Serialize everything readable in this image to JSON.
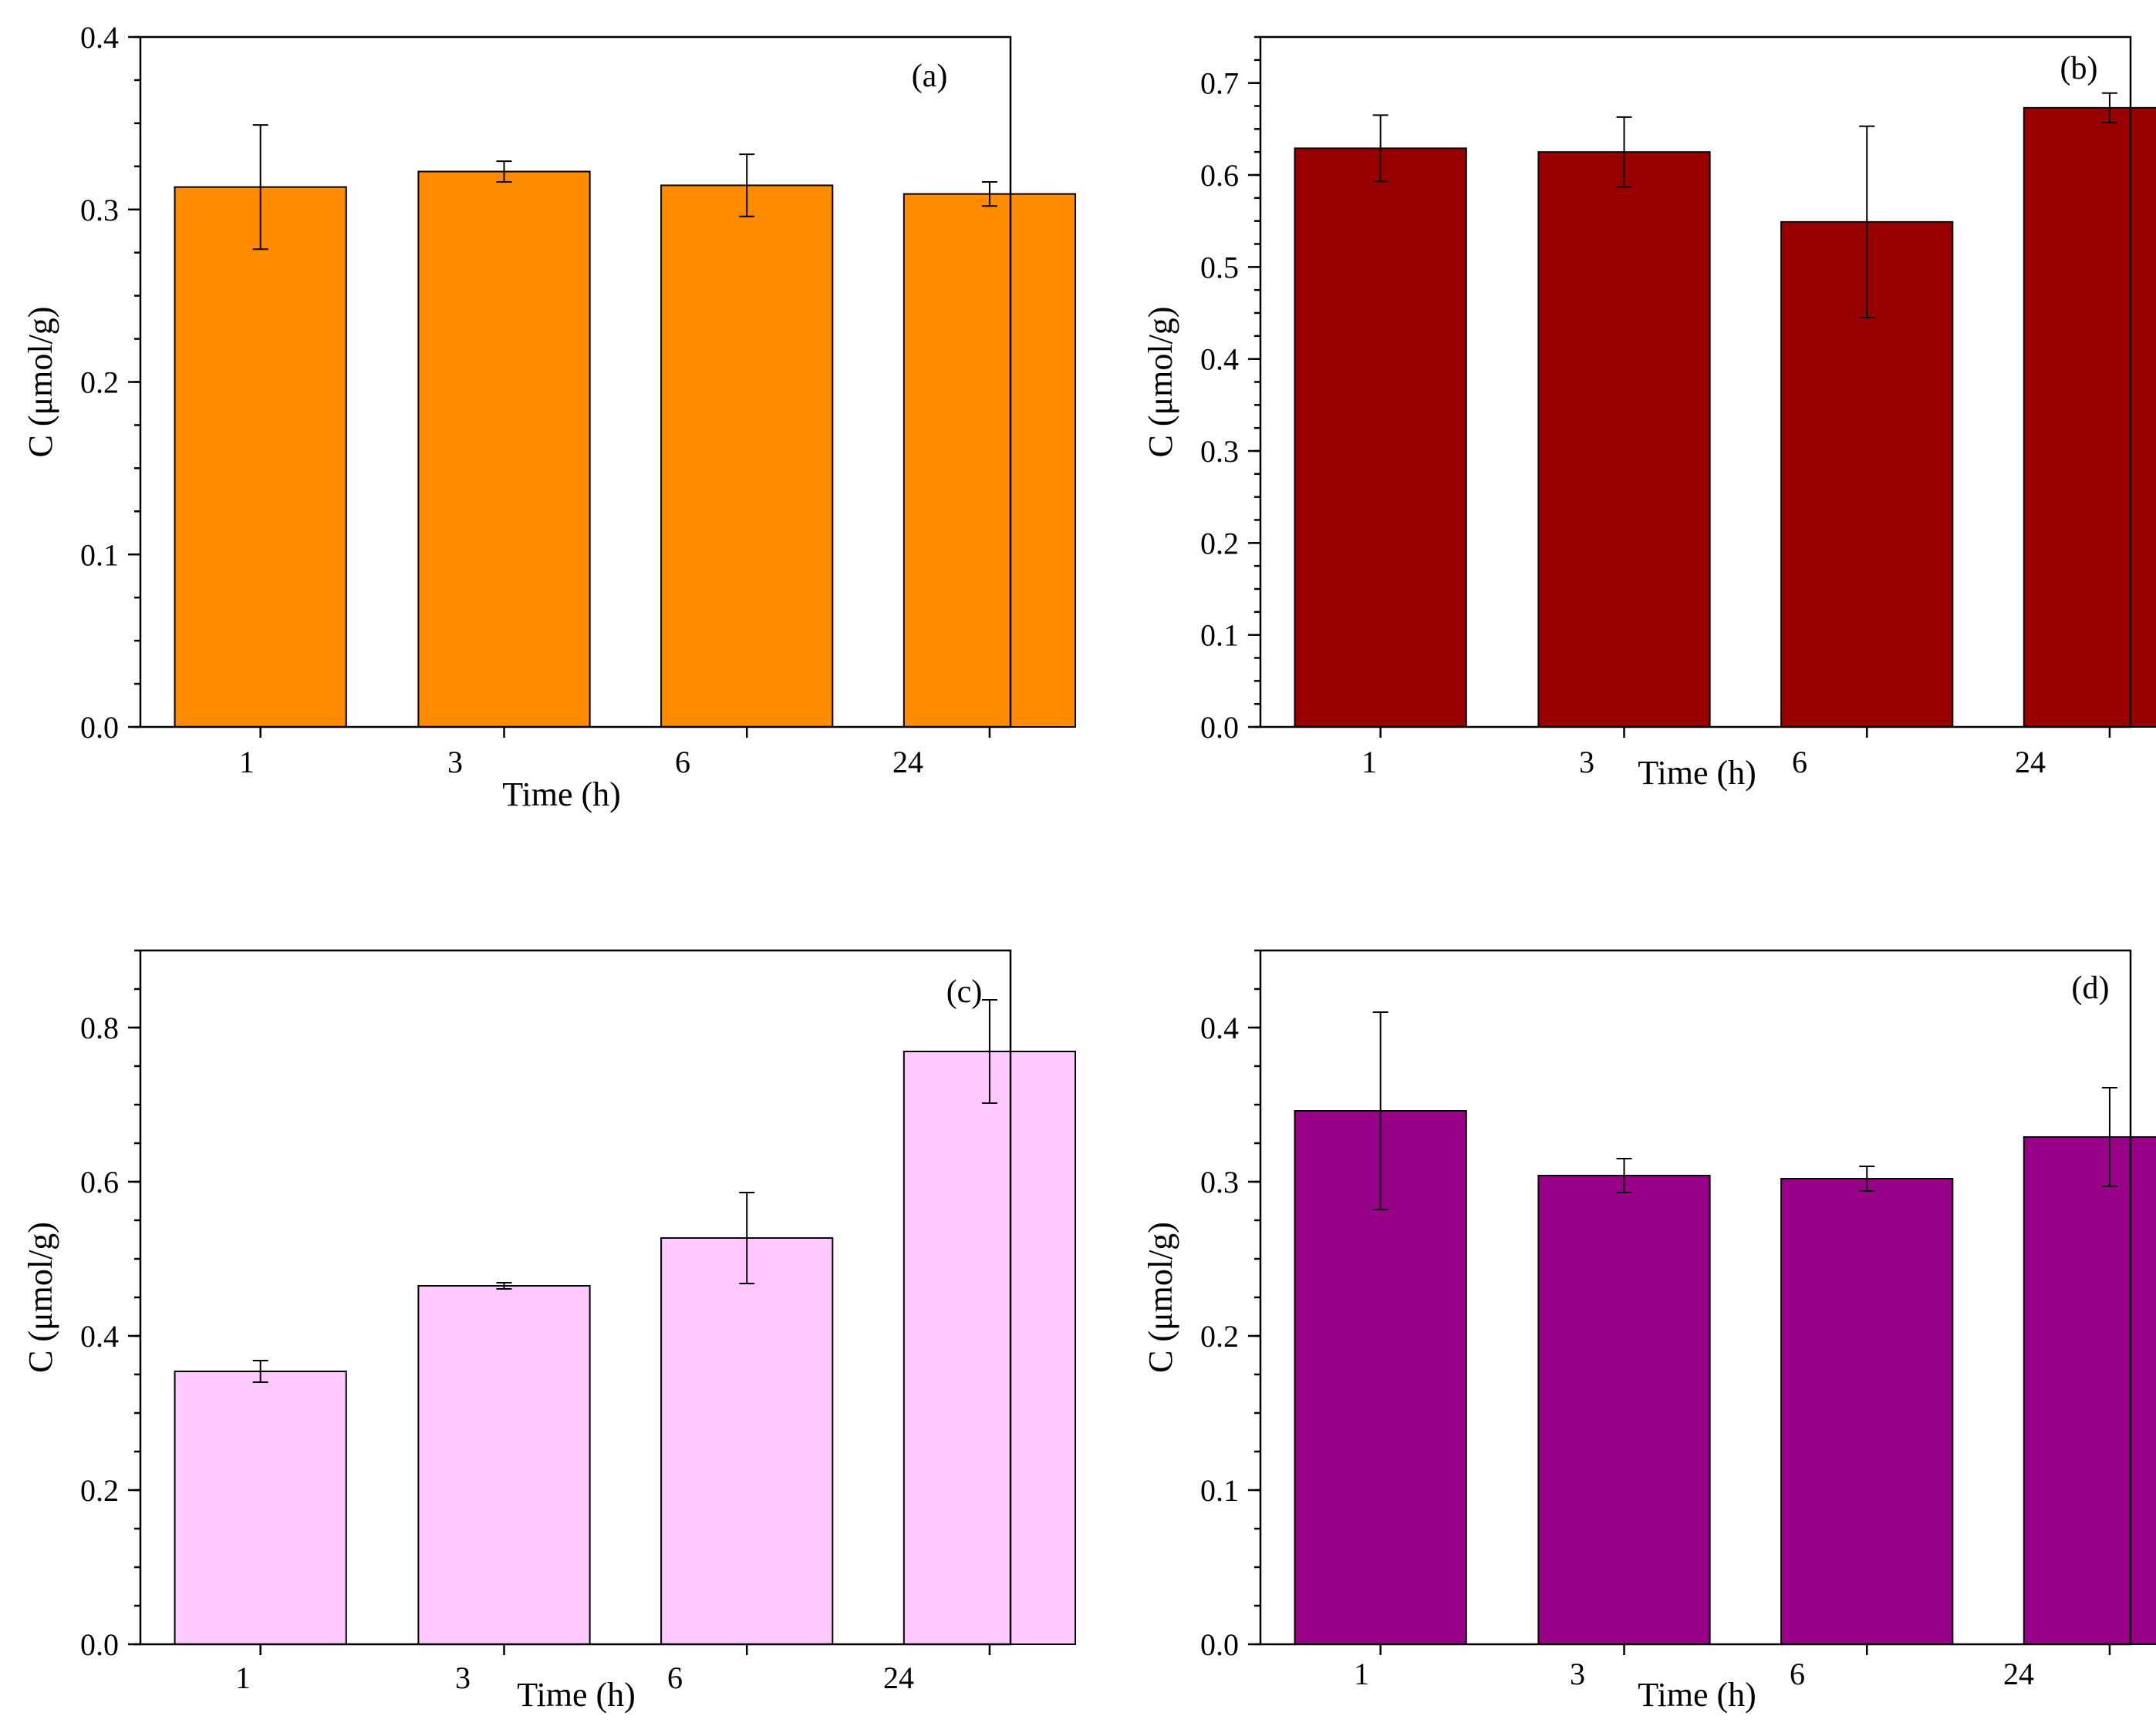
{
  "chart_data": [
    {
      "type": "bar",
      "panel_label": "(a)",
      "categories": [
        "1",
        "3",
        "6",
        "24"
      ],
      "values": [
        0.313,
        0.322,
        0.314,
        0.309
      ],
      "errors": [
        0.036,
        0.006,
        0.018,
        0.007
      ],
      "xlabel": "Time (h)",
      "ylabel": "C (μmol/g)",
      "ylim": [
        0,
        0.4
      ],
      "yticks": [
        "0.0",
        "0.1",
        "0.2",
        "0.3",
        "0.4"
      ],
      "bar_color": "#FF8C00"
    },
    {
      "type": "bar",
      "panel_label": "(b)",
      "categories": [
        "1",
        "3",
        "6",
        "24"
      ],
      "values": [
        0.629,
        0.625,
        0.549,
        0.673
      ],
      "errors": [
        0.036,
        0.038,
        0.104,
        0.016
      ],
      "xlabel": "Time (h)",
      "ylabel": "C (μmol/g)",
      "ylim": [
        0,
        0.75
      ],
      "yticks": [
        "0.0",
        "0.1",
        "0.2",
        "0.3",
        "0.4",
        "0.5",
        "0.6",
        "0.7"
      ],
      "bar_color": "#990000"
    },
    {
      "type": "bar",
      "panel_label": "(c)",
      "categories": [
        "1",
        "3",
        "6",
        "24"
      ],
      "values": [
        0.354,
        0.465,
        0.527,
        0.769
      ],
      "errors": [
        0.014,
        0.004,
        0.059,
        0.067
      ],
      "xlabel": "Time (h)",
      "ylabel": "C (μmol/g)",
      "ylim": [
        0,
        0.9
      ],
      "yticks": [
        "0.0",
        "0.2",
        "0.4",
        "0.6",
        "0.8"
      ],
      "bar_color": "#FFC8FF"
    },
    {
      "type": "bar",
      "panel_label": "(d)",
      "categories": [
        "1",
        "3",
        "6",
        "24"
      ],
      "values": [
        0.346,
        0.304,
        0.302,
        0.329
      ],
      "errors": [
        0.064,
        0.011,
        0.008,
        0.032
      ],
      "xlabel": "Time (h)",
      "ylabel": "C (μmol/g)",
      "ylim": [
        0,
        0.45
      ],
      "yticks": [
        "0.0",
        "0.1",
        "0.2",
        "0.3",
        "0.4"
      ],
      "bar_color": "#990088"
    }
  ]
}
